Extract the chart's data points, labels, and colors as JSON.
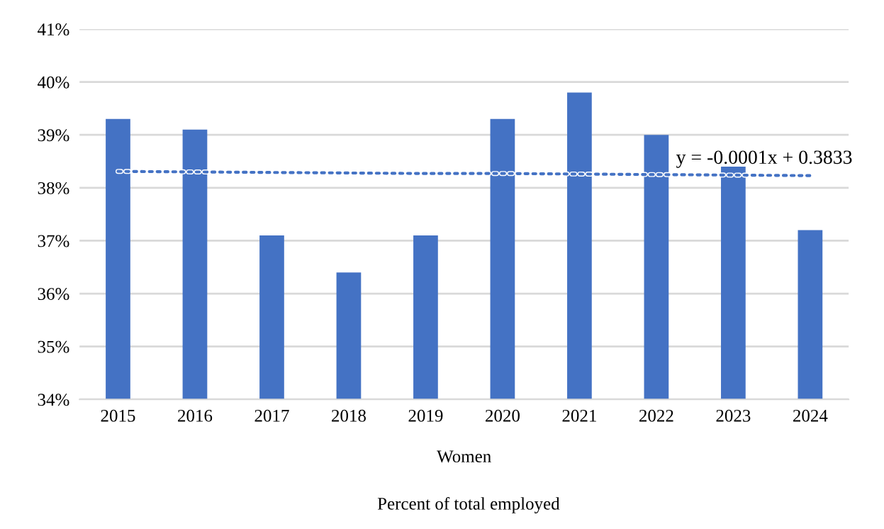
{
  "chart_data": {
    "type": "bar",
    "categories": [
      "2015",
      "2016",
      "2017",
      "2018",
      "2019",
      "2020",
      "2021",
      "2022",
      "2023",
      "2024"
    ],
    "series": [
      {
        "color": "#4472c4",
        "values": [
          39.3,
          39.1,
          37.1,
          36.4,
          37.1,
          39.3,
          39.8,
          39.0,
          38.4,
          37.2
        ]
      },
      {
        "type": "line",
        "color": "#4472c4",
        "line_style": "dotted",
        "values": [
          38.31,
          38.3,
          38.29,
          38.28,
          38.27,
          38.27,
          38.26,
          38.25,
          38.24,
          38.23
        ]
      }
    ],
    "xlabel": "Women",
    "annotations": [
      "y = -0.0001x + 0.3833",
      "Percent of total employed"
    ],
    "ylim": [
      34,
      41
    ],
    "yticks": [
      {
        "value": 34,
        "label": "34%"
      },
      {
        "value": 35,
        "label": "35%"
      },
      {
        "value": 36,
        "label": "36%"
      },
      {
        "value": 37,
        "label": "37%"
      },
      {
        "value": 38,
        "label": "38%"
      },
      {
        "value": 39,
        "label": "39%"
      },
      {
        "value": 40,
        "label": "40%"
      },
      {
        "value": 41,
        "label": "41%"
      }
    ],
    "grid": "y",
    "legend": false
  }
}
